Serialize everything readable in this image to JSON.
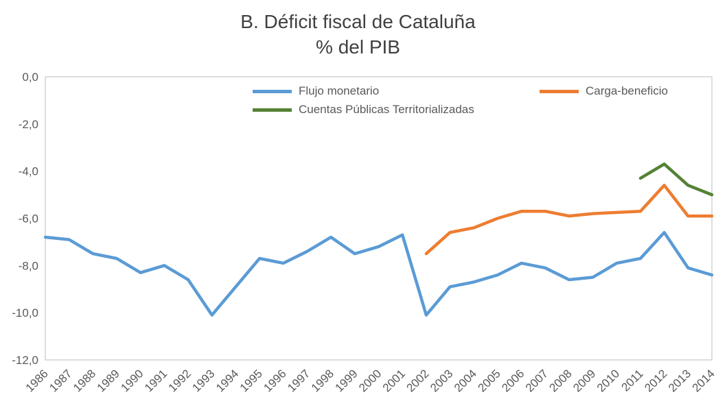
{
  "chart_data": {
    "type": "line",
    "title": "B. Déficit fiscal de Cataluña",
    "subtitle": "% del PIB",
    "xlabel": "",
    "ylabel": "",
    "grid": false,
    "legend_position": "top-inside",
    "title_color": "#404040",
    "axis_text_color": "#595959",
    "plot_border_color": "#d2d2d2",
    "ylim": [
      -12,
      0
    ],
    "y_ticks": [
      {
        "value": 0,
        "label": "0,0"
      },
      {
        "value": -2,
        "label": "-2,0"
      },
      {
        "value": -4,
        "label": "-4,0"
      },
      {
        "value": -6,
        "label": "-6,0"
      },
      {
        "value": -8,
        "label": "-8,0"
      },
      {
        "value": -10,
        "label": "-10,0"
      },
      {
        "value": -12,
        "label": "-12,0"
      }
    ],
    "categories": [
      "1986",
      "1987",
      "1988",
      "1989",
      "1990",
      "1991",
      "1992",
      "1993",
      "1994",
      "1995",
      "1996",
      "1997",
      "1998",
      "1999",
      "2000",
      "2001",
      "2002",
      "2003",
      "2004",
      "2005",
      "2006",
      "2007",
      "2008",
      "2009",
      "2010",
      "2011",
      "2012",
      "2013",
      "2014"
    ],
    "series": [
      {
        "name": "Flujo monetario",
        "color": "#5B9BD5",
        "values": [
          -6.8,
          -6.9,
          -7.5,
          -7.7,
          -8.3,
          -8.0,
          -8.6,
          -10.1,
          -8.9,
          -7.7,
          -7.9,
          -7.4,
          -6.8,
          -7.5,
          -7.2,
          -6.7,
          -10.1,
          -8.9,
          -8.7,
          -8.4,
          -7.9,
          -8.1,
          -8.6,
          -8.5,
          -7.9,
          -7.7,
          -6.6,
          -8.1,
          -8.4
        ]
      },
      {
        "name": "Carga-beneficio",
        "color": "#ED7D31",
        "values": [
          null,
          null,
          null,
          null,
          null,
          null,
          null,
          null,
          null,
          null,
          null,
          null,
          null,
          null,
          null,
          null,
          -7.5,
          -6.6,
          -6.4,
          -6.0,
          -5.7,
          -5.7,
          -5.9,
          -5.8,
          -5.75,
          -5.7,
          -4.6,
          -5.9,
          -5.9
        ]
      },
      {
        "name": "Cuentas Públicas Territorializadas",
        "color": "#548235",
        "values": [
          null,
          null,
          null,
          null,
          null,
          null,
          null,
          null,
          null,
          null,
          null,
          null,
          null,
          null,
          null,
          null,
          null,
          null,
          null,
          null,
          null,
          null,
          null,
          null,
          null,
          -4.3,
          -3.7,
          -4.6,
          -5.0
        ]
      }
    ]
  }
}
